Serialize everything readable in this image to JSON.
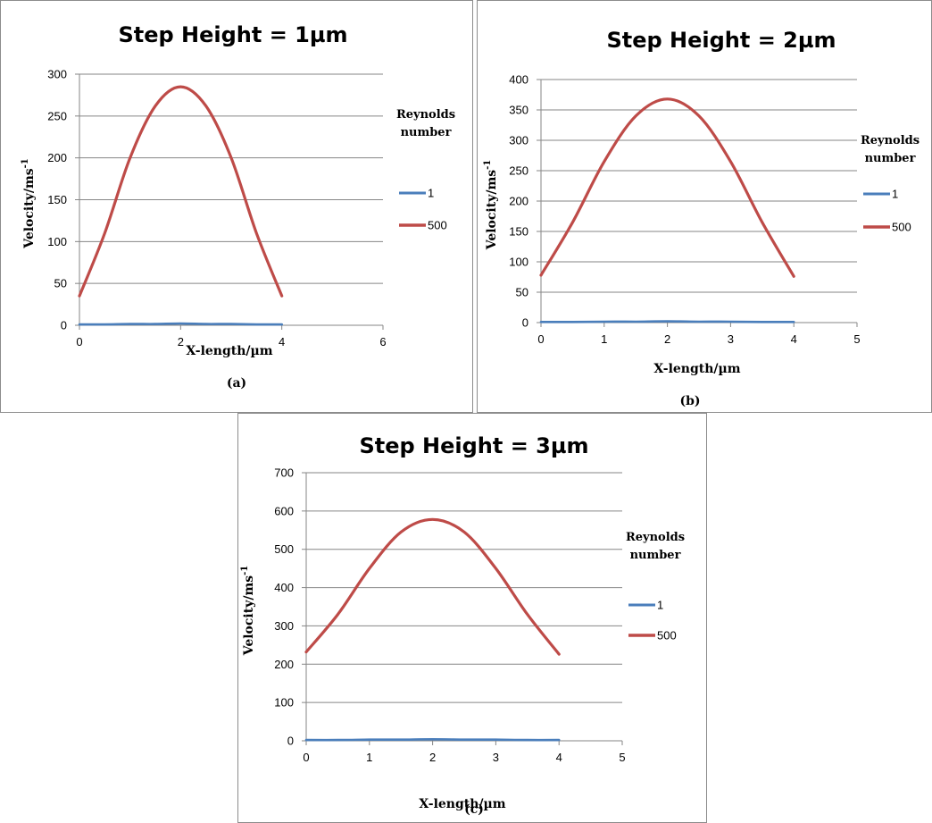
{
  "chart_data": [
    {
      "type": "line",
      "panel_label": "(a)",
      "title": "Step Height = 1µm",
      "xlabel": "X-length/µm",
      "ylabel": "Velocity/ms",
      "ylabel_sup": "-1",
      "xlim": [
        0,
        6
      ],
      "ylim": [
        0,
        300
      ],
      "xticks": [
        0,
        2,
        4,
        6
      ],
      "yticks": [
        0,
        50,
        100,
        150,
        200,
        250,
        300
      ],
      "grid": "horizontal",
      "legend": {
        "title": [
          "Reynolds",
          "number"
        ],
        "position": "right"
      },
      "series": [
        {
          "name": "1",
          "color": "#4a7ebb",
          "x": [
            0,
            0.5,
            1,
            1.5,
            2,
            2.5,
            3,
            3.5,
            4
          ],
          "y": [
            1,
            1,
            1.5,
            1.5,
            2,
            1.5,
            1.5,
            1,
            1
          ]
        },
        {
          "name": "500",
          "color": "#be4b48",
          "x": [
            0,
            0.5,
            1,
            1.5,
            2,
            2.5,
            3,
            3.5,
            4
          ],
          "y": [
            35,
            110,
            200,
            262,
            285,
            262,
            200,
            110,
            35
          ]
        }
      ]
    },
    {
      "type": "line",
      "panel_label": "(b)",
      "title": "Step Height = 2µm",
      "xlabel": "X-length/µm",
      "ylabel": "Velocity/ms",
      "ylabel_sup": "-1",
      "xlim": [
        0,
        5
      ],
      "ylim": [
        0,
        400
      ],
      "xticks": [
        0,
        1,
        2,
        3,
        4,
        5
      ],
      "yticks": [
        0,
        50,
        100,
        150,
        200,
        250,
        300,
        350,
        400
      ],
      "grid": "horizontal",
      "legend": {
        "title": [
          "Reynolds",
          "number"
        ],
        "position": "right"
      },
      "series": [
        {
          "name": "1",
          "color": "#4a7ebb",
          "x": [
            0,
            0.5,
            1,
            1.5,
            2,
            2.5,
            3,
            3.5,
            4
          ],
          "y": [
            1,
            1,
            1.5,
            1.5,
            2,
            1.5,
            1.5,
            1,
            1
          ]
        },
        {
          "name": "500",
          "color": "#be4b48",
          "x": [
            0,
            0.5,
            1,
            1.5,
            2,
            2.5,
            3,
            3.5,
            4
          ],
          "y": [
            78,
            165,
            265,
            340,
            368,
            340,
            265,
            165,
            76
          ]
        }
      ]
    },
    {
      "type": "line",
      "panel_label": "(c)",
      "title": "Step Height = 3µm",
      "xlabel": "X-length/µm",
      "ylabel": "Velocity/ms",
      "ylabel_sup": "-1",
      "xlim": [
        0,
        5
      ],
      "ylim": [
        0,
        700
      ],
      "xticks": [
        0,
        1,
        2,
        3,
        4,
        5
      ],
      "yticks": [
        0,
        100,
        200,
        300,
        400,
        500,
        600,
        700
      ],
      "grid": "horizontal",
      "legend": {
        "title": [
          "Reynolds",
          "number"
        ],
        "position": "right"
      },
      "series": [
        {
          "name": "1",
          "color": "#4a7ebb",
          "x": [
            0,
            0.5,
            1,
            1.5,
            2,
            2.5,
            3,
            3.5,
            4
          ],
          "y": [
            2,
            2,
            3,
            3,
            4,
            3,
            3,
            2,
            2
          ]
        },
        {
          "name": "500",
          "color": "#be4b48",
          "x": [
            0,
            0.5,
            1,
            1.5,
            2,
            2.5,
            3,
            3.5,
            4
          ],
          "y": [
            232,
            330,
            450,
            545,
            578,
            545,
            450,
            330,
            226
          ]
        }
      ]
    }
  ]
}
